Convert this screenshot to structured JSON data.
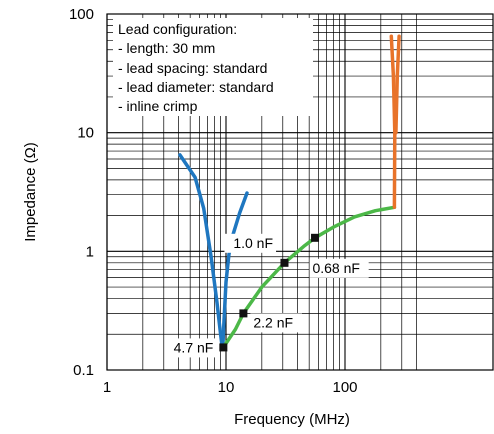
{
  "chart_data": {
    "type": "line",
    "xlabel": "Frequency (MHz)",
    "ylabel": "Impedance (Ω)",
    "xscale": "log",
    "yscale": "log",
    "xlim": [
      1,
      400
    ],
    "ylim": [
      0.1,
      100
    ],
    "x_ticks": [
      {
        "value": 1,
        "label": "1"
      },
      {
        "value": 10,
        "label": "10"
      },
      {
        "value": 100,
        "label": "100"
      }
    ],
    "y_ticks": [
      {
        "value": 0.1,
        "label": "0.1"
      },
      {
        "value": 1,
        "label": "1"
      },
      {
        "value": 10,
        "label": "10"
      },
      {
        "value": 100,
        "label": "100"
      }
    ],
    "grid": true,
    "legend_box": {
      "placement": "top-left",
      "lines": [
        "Lead configuration:",
        "- length: 30 mm",
        "- lead spacing: standard",
        "- lead diameter: standard",
        "- inline crimp"
      ]
    },
    "series": [
      {
        "color": "#1f77c0",
        "points": [
          [
            4.1,
            6.5
          ],
          [
            5.5,
            4.2
          ],
          [
            6.5,
            2.3
          ],
          [
            7.5,
            0.9
          ],
          [
            8.4,
            0.37
          ],
          [
            9.0,
            0.2
          ],
          [
            9.3,
            0.155
          ]
        ]
      },
      {
        "color": "#1f77c0",
        "points": [
          [
            9.4,
            0.155
          ],
          [
            9.6,
            0.25
          ],
          [
            10.0,
            0.55
          ],
          [
            10.6,
            0.95
          ],
          [
            11.5,
            1.4
          ],
          [
            13.0,
            2.1
          ],
          [
            15.0,
            3.1
          ]
        ]
      },
      {
        "color": "#4cb848",
        "points": [
          [
            9.5,
            0.155
          ],
          [
            12.0,
            0.22
          ],
          [
            14.0,
            0.3
          ],
          [
            20.0,
            0.5
          ],
          [
            31.0,
            0.8
          ],
          [
            45.0,
            1.1
          ],
          [
            56.0,
            1.3
          ],
          [
            80.0,
            1.6
          ],
          [
            120.0,
            1.95
          ],
          [
            180.0,
            2.2
          ],
          [
            260.0,
            2.35
          ]
        ]
      },
      {
        "color": "#e8732a",
        "points": [
          [
            260.0,
            2.35
          ],
          [
            262.0,
            10.0
          ],
          [
            255.0,
            30.0
          ],
          [
            245.0,
            65.0
          ]
        ]
      },
      {
        "color": "#e8732a",
        "points": [
          [
            268.0,
            10.0
          ],
          [
            275.0,
            30.0
          ],
          [
            285.0,
            65.0
          ]
        ]
      }
    ],
    "markers": [
      {
        "x": 9.5,
        "y": 0.155,
        "label": "4.7 nF",
        "anchor": "left"
      },
      {
        "x": 14.0,
        "y": 0.3,
        "label": "2.2 nF",
        "anchor": "right"
      },
      {
        "x": 31.0,
        "y": 0.8,
        "label": "0.68 nF",
        "anchor": "right-below"
      },
      {
        "x": 56.0,
        "y": 1.3,
        "label": "1.0 nF",
        "anchor": "left-below"
      }
    ]
  }
}
